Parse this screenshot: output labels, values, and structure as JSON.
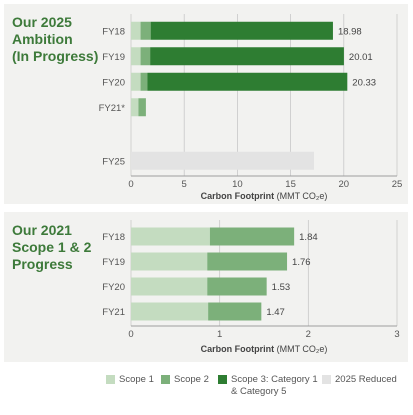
{
  "chart_data": [
    {
      "type": "bar",
      "orientation": "horizontal",
      "stacked": true,
      "title": "Our 2025\nAmbition\n(In Progress)",
      "xlabel": "Carbon Footprint",
      "xlabel_unit": "(MMT CO₂e)",
      "xlim": [
        0,
        25
      ],
      "xticks": [
        0,
        5,
        10,
        15,
        20,
        25
      ],
      "grid": true,
      "categories": [
        "FY18",
        "FY19",
        "FY20",
        "FY21*",
        "FY25"
      ],
      "data_labels": [
        "18.98",
        "20.01",
        "20.33",
        "",
        ""
      ],
      "series": [
        {
          "name": "Scope 1",
          "values": [
            0.9,
            0.9,
            0.9,
            0.7,
            0
          ],
          "color": "#c4dcc0"
        },
        {
          "name": "Scope 2",
          "values": [
            0.95,
            0.9,
            0.65,
            0.7,
            0
          ],
          "color": "#7cb07a"
        },
        {
          "name": "Scope 3: Category 1 & Category 5",
          "values": [
            17.13,
            18.21,
            18.78,
            0,
            0
          ],
          "color": "#2e7d32"
        },
        {
          "name": "2025 Reduced",
          "values": [
            0,
            0,
            0,
            0,
            17.2
          ],
          "color": "#e3e3e3"
        }
      ]
    },
    {
      "type": "bar",
      "orientation": "horizontal",
      "stacked": true,
      "title": "Our 2021\nScope 1 & 2\nProgress",
      "xlabel": "Carbon Footprint",
      "xlabel_unit": "(MMT CO₂e)",
      "xlim": [
        0,
        3
      ],
      "xticks": [
        0,
        1,
        2,
        3
      ],
      "grid": true,
      "categories": [
        "FY18",
        "FY19",
        "FY20",
        "FY21"
      ],
      "data_labels": [
        "1.84",
        "1.76",
        "1.53",
        "1.47"
      ],
      "series": [
        {
          "name": "Scope 1",
          "values": [
            0.89,
            0.86,
            0.86,
            0.87
          ],
          "color": "#c4dcc0"
        },
        {
          "name": "Scope 2",
          "values": [
            0.95,
            0.9,
            0.67,
            0.6
          ],
          "color": "#7cb07a"
        }
      ]
    }
  ],
  "legend": [
    {
      "label": "Scope 1",
      "color": "#c4dcc0"
    },
    {
      "label": "Scope 2",
      "color": "#7cb07a"
    },
    {
      "label": "Scope 3: Category 1\n& Category 5",
      "color": "#2e7d32"
    },
    {
      "label": "2025 Reduced",
      "color": "#e3e3e3"
    }
  ],
  "colors": {
    "title": "#3d7a3a",
    "axis_text": "#555555",
    "grid": "#c8c8c8"
  }
}
